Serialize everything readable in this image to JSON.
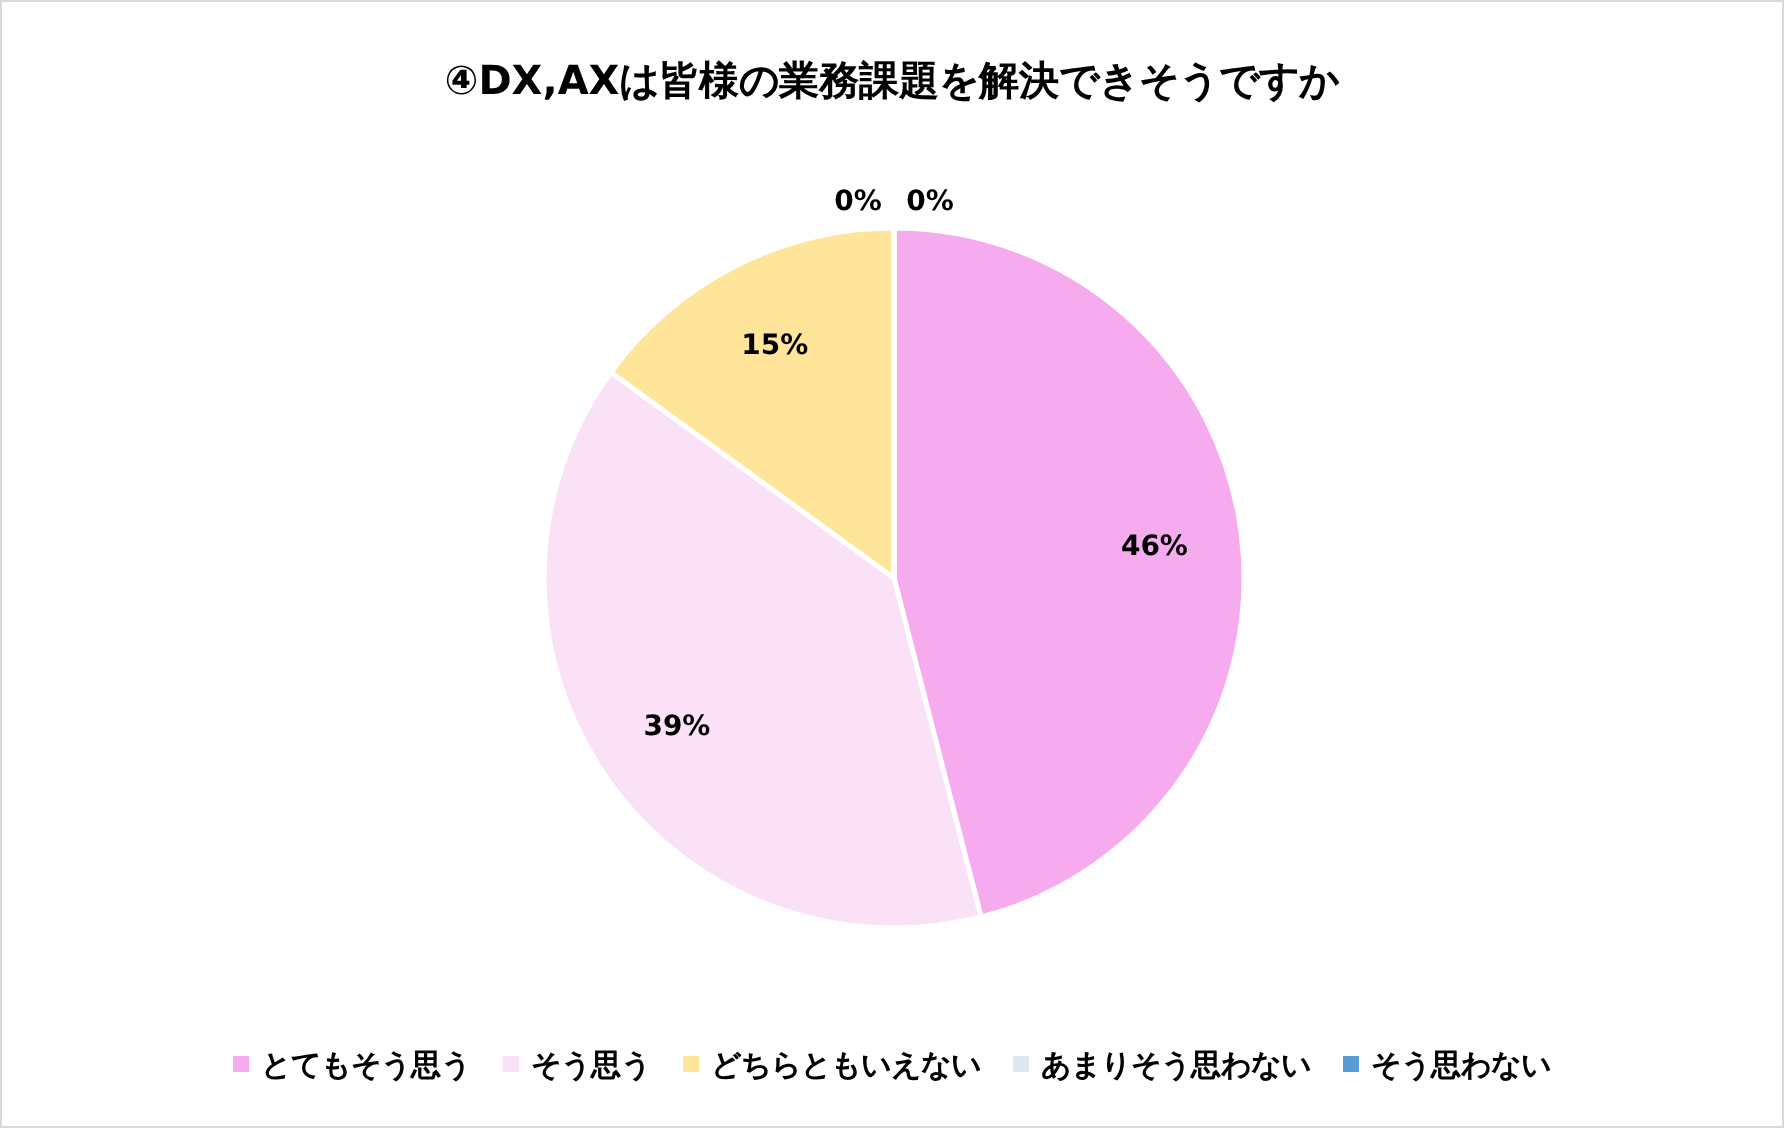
{
  "chart_data": {
    "type": "pie",
    "title": "④DX,AXは皆様の業務課題を解決できそうですか",
    "categories": [
      "とてもそう思う",
      "そう思う",
      "どちらともいえない",
      "あまりそう思わない",
      "そう思わない"
    ],
    "values": [
      46,
      39,
      15,
      0,
      0
    ],
    "colors": [
      "#f5abed",
      "#fae1f6",
      "#ffe599",
      "#dde8f3",
      "#5b9bd5"
    ],
    "value_labels": [
      "46%",
      "39%",
      "15%",
      "0%",
      "0%"
    ],
    "legend": "bottom"
  }
}
